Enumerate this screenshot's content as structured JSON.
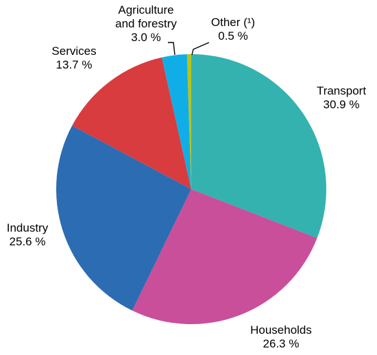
{
  "chart_data": {
    "type": "pie",
    "start_angle_deg": 0,
    "direction": "clockwise",
    "slices": [
      {
        "label_lines": [
          "Transport"
        ],
        "value": 30.9,
        "value_label": "30.9 %",
        "color": "#33b2b0"
      },
      {
        "label_lines": [
          "Households"
        ],
        "value": 26.3,
        "value_label": "26.3 %",
        "color": "#c94f9b"
      },
      {
        "label_lines": [
          "Industry"
        ],
        "value": 25.6,
        "value_label": "25.6 %",
        "color": "#2c6cb2"
      },
      {
        "label_lines": [
          "Services"
        ],
        "value": 13.7,
        "value_label": "13.7 %",
        "color": "#d83c3f"
      },
      {
        "label_lines": [
          "Agriculture",
          "and forestry"
        ],
        "value": 3.0,
        "value_label": "3.0 %",
        "color": "#10aee7"
      },
      {
        "label_lines": [
          "Other (¹)"
        ],
        "value": 0.5,
        "value_label": "0.5 %",
        "color": "#b8c31b"
      }
    ]
  }
}
